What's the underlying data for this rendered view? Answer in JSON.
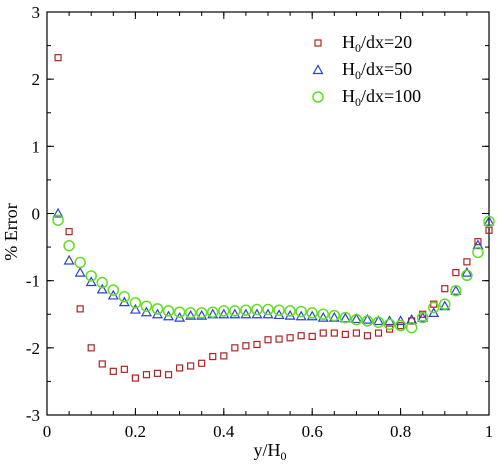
{
  "chart_data": {
    "type": "scatter",
    "xlabel": "y/H",
    "xlabel_sub": "0",
    "ylabel": "% Error",
    "xlim": [
      0,
      1
    ],
    "ylim": [
      -3,
      3
    ],
    "xticks": [
      "0",
      "0.2",
      "0.4",
      "0.6",
      "0.8",
      "1"
    ],
    "xtick_values": [
      0,
      0.2,
      0.4,
      0.6,
      0.8,
      1
    ],
    "yticks": [
      "3",
      "2",
      "1",
      "0",
      "-1",
      "-2",
      "-3"
    ],
    "ytick_values": [
      3,
      2,
      1,
      0,
      -1,
      -2,
      -3
    ],
    "grid": false,
    "legend_position": "top-right",
    "series": [
      {
        "name": "H0/dx=20",
        "label_main": "H",
        "label_sub": "0",
        "label_rest": "/dx=20",
        "marker": "square",
        "color": "#b22222",
        "points": [
          [
            0.025,
            2.32
          ],
          [
            0.05,
            -0.27
          ],
          [
            0.075,
            -1.42
          ],
          [
            0.1,
            -2.0
          ],
          [
            0.125,
            -2.24
          ],
          [
            0.15,
            -2.35
          ],
          [
            0.175,
            -2.32
          ],
          [
            0.2,
            -2.45
          ],
          [
            0.225,
            -2.4
          ],
          [
            0.25,
            -2.38
          ],
          [
            0.275,
            -2.4
          ],
          [
            0.3,
            -2.3
          ],
          [
            0.325,
            -2.27
          ],
          [
            0.35,
            -2.23
          ],
          [
            0.375,
            -2.13
          ],
          [
            0.4,
            -2.12
          ],
          [
            0.425,
            -2.0
          ],
          [
            0.45,
            -1.97
          ],
          [
            0.475,
            -1.95
          ],
          [
            0.5,
            -1.88
          ],
          [
            0.525,
            -1.87
          ],
          [
            0.55,
            -1.85
          ],
          [
            0.575,
            -1.82
          ],
          [
            0.6,
            -1.83
          ],
          [
            0.625,
            -1.78
          ],
          [
            0.65,
            -1.78
          ],
          [
            0.675,
            -1.8
          ],
          [
            0.7,
            -1.78
          ],
          [
            0.725,
            -1.82
          ],
          [
            0.75,
            -1.78
          ],
          [
            0.775,
            -1.72
          ],
          [
            0.8,
            -1.67
          ],
          [
            0.825,
            -1.6
          ],
          [
            0.85,
            -1.5
          ],
          [
            0.875,
            -1.35
          ],
          [
            0.9,
            -1.12
          ],
          [
            0.925,
            -0.88
          ],
          [
            0.95,
            -0.72
          ],
          [
            0.975,
            -0.42
          ],
          [
            1.0,
            -0.25
          ]
        ]
      },
      {
        "name": "H0/dx=50",
        "label_main": "H",
        "label_sub": "0",
        "label_rest": "/dx=50",
        "marker": "triangle",
        "color": "#2b3fd6",
        "points": [
          [
            0.025,
            0.0
          ],
          [
            0.05,
            -0.7
          ],
          [
            0.075,
            -0.88
          ],
          [
            0.1,
            -1.02
          ],
          [
            0.125,
            -1.13
          ],
          [
            0.15,
            -1.22
          ],
          [
            0.175,
            -1.32
          ],
          [
            0.2,
            -1.43
          ],
          [
            0.225,
            -1.47
          ],
          [
            0.25,
            -1.5
          ],
          [
            0.275,
            -1.53
          ],
          [
            0.3,
            -1.55
          ],
          [
            0.325,
            -1.52
          ],
          [
            0.35,
            -1.52
          ],
          [
            0.375,
            -1.5
          ],
          [
            0.4,
            -1.5
          ],
          [
            0.425,
            -1.5
          ],
          [
            0.45,
            -1.5
          ],
          [
            0.475,
            -1.5
          ],
          [
            0.5,
            -1.5
          ],
          [
            0.525,
            -1.51
          ],
          [
            0.55,
            -1.52
          ],
          [
            0.575,
            -1.53
          ],
          [
            0.6,
            -1.53
          ],
          [
            0.625,
            -1.55
          ],
          [
            0.65,
            -1.55
          ],
          [
            0.675,
            -1.56
          ],
          [
            0.7,
            -1.57
          ],
          [
            0.725,
            -1.58
          ],
          [
            0.75,
            -1.6
          ],
          [
            0.775,
            -1.6
          ],
          [
            0.8,
            -1.6
          ],
          [
            0.825,
            -1.58
          ],
          [
            0.85,
            -1.55
          ],
          [
            0.875,
            -1.48
          ],
          [
            0.9,
            -1.38
          ],
          [
            0.925,
            -1.15
          ],
          [
            0.95,
            -0.88
          ],
          [
            0.975,
            -0.47
          ],
          [
            1.0,
            -0.12
          ]
        ]
      },
      {
        "name": "H0/dx=100",
        "label_main": "H",
        "label_sub": "0",
        "label_rest": "/dx=100",
        "marker": "circle",
        "color": "#5ee01e",
        "points": [
          [
            0.025,
            -0.1
          ],
          [
            0.05,
            -0.48
          ],
          [
            0.075,
            -0.73
          ],
          [
            0.1,
            -0.93
          ],
          [
            0.125,
            -1.03
          ],
          [
            0.15,
            -1.14
          ],
          [
            0.175,
            -1.24
          ],
          [
            0.2,
            -1.33
          ],
          [
            0.225,
            -1.38
          ],
          [
            0.25,
            -1.42
          ],
          [
            0.275,
            -1.45
          ],
          [
            0.3,
            -1.47
          ],
          [
            0.325,
            -1.48
          ],
          [
            0.35,
            -1.48
          ],
          [
            0.375,
            -1.47
          ],
          [
            0.4,
            -1.45
          ],
          [
            0.425,
            -1.45
          ],
          [
            0.45,
            -1.44
          ],
          [
            0.475,
            -1.43
          ],
          [
            0.5,
            -1.43
          ],
          [
            0.525,
            -1.44
          ],
          [
            0.55,
            -1.45
          ],
          [
            0.575,
            -1.46
          ],
          [
            0.6,
            -1.48
          ],
          [
            0.625,
            -1.5
          ],
          [
            0.65,
            -1.52
          ],
          [
            0.675,
            -1.55
          ],
          [
            0.7,
            -1.58
          ],
          [
            0.725,
            -1.6
          ],
          [
            0.75,
            -1.62
          ],
          [
            0.775,
            -1.65
          ],
          [
            0.8,
            -1.67
          ],
          [
            0.825,
            -1.7
          ],
          [
            0.85,
            -1.55
          ],
          [
            0.875,
            -1.4
          ],
          [
            0.9,
            -1.35
          ],
          [
            0.925,
            -1.15
          ],
          [
            0.95,
            -0.92
          ],
          [
            0.975,
            -0.58
          ],
          [
            1.0,
            -0.12
          ]
        ]
      }
    ]
  }
}
